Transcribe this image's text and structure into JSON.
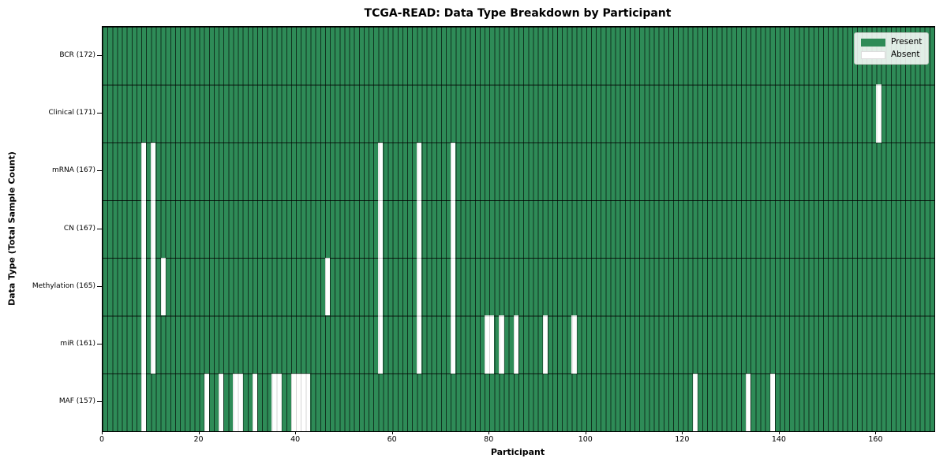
{
  "title": "TCGA-READ: Data Type Breakdown by Participant",
  "chart_data": {
    "type": "heatmap",
    "title": "TCGA-READ: Data Type Breakdown by Participant",
    "xlabel": "Participant",
    "ylabel": "Data Type (Total Sample Count)",
    "n_participants": 172,
    "x_ticks": [
      0,
      20,
      40,
      60,
      80,
      100,
      120,
      140,
      160
    ],
    "grid": true,
    "legend_position": "upper right",
    "colors": {
      "present": "#2e8b57",
      "absent": "#ffffff",
      "gridline": "rgba(0,0,0,0.55)"
    },
    "legend": [
      {
        "key": "present",
        "label": "Present",
        "color": "#2e8b57"
      },
      {
        "key": "absent",
        "label": "Absent",
        "color": "#ffffff"
      }
    ],
    "rows": [
      {
        "key": "bcr",
        "label": "BCR (172)",
        "data_type": "BCR",
        "count": 172,
        "absent_participants": []
      },
      {
        "key": "clinical",
        "label": "Clinical (171)",
        "data_type": "Clinical",
        "count": 171,
        "absent_participants": [
          160
        ]
      },
      {
        "key": "mrna",
        "label": "mRNA (167)",
        "data_type": "mRNA",
        "count": 167,
        "absent_participants": [
          8,
          10,
          57,
          65,
          72
        ]
      },
      {
        "key": "cn",
        "label": "CN (167)",
        "data_type": "CN",
        "count": 167,
        "absent_participants": [
          8,
          10,
          57,
          65,
          72
        ]
      },
      {
        "key": "methylation",
        "label": "Methylation (165)",
        "data_type": "Methylation",
        "count": 165,
        "absent_participants": [
          8,
          10,
          12,
          46,
          57,
          65,
          72
        ]
      },
      {
        "key": "mir",
        "label": "miR (161)",
        "data_type": "miR",
        "count": 161,
        "absent_participants": [
          8,
          10,
          57,
          65,
          72,
          79,
          80,
          82,
          85,
          91,
          97
        ]
      },
      {
        "key": "maf",
        "label": "MAF (157)",
        "data_type": "MAF",
        "count": 157,
        "absent_participants": [
          8,
          21,
          24,
          27,
          28,
          31,
          35,
          36,
          39,
          40,
          41,
          42,
          122,
          133,
          138
        ]
      }
    ]
  }
}
